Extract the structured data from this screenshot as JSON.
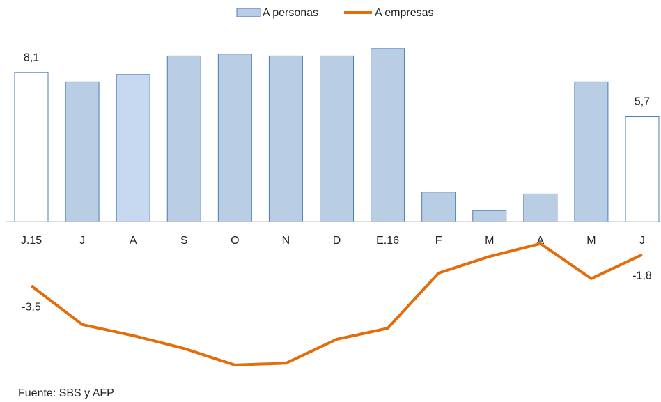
{
  "chart_data": {
    "type": "bar-line",
    "categories": [
      "J.15",
      "J",
      "A",
      "S",
      "O",
      "N",
      "D",
      "E.16",
      "F",
      "M",
      "A",
      "M",
      "J"
    ],
    "series": [
      {
        "name": "A personas",
        "type": "bar",
        "color": "#b9cde5",
        "border": "#4a7ebb",
        "point_colors": [
          "#ffffff",
          "#b9cde5",
          "#c6d9f1",
          "#b9cde5",
          "#b9cde5",
          "#b9cde5",
          "#b9cde5",
          "#b9cde5",
          "#b9cde5",
          "#b9cde5",
          "#b9cde5",
          "#b9cde5",
          "#ffffff"
        ],
        "values": [
          8.1,
          7.6,
          8.0,
          9.0,
          9.1,
          9.0,
          9.0,
          9.4,
          1.6,
          0.6,
          1.5,
          7.6,
          5.7
        ],
        "value_labels": [
          "8,1",
          null,
          null,
          null,
          null,
          null,
          null,
          null,
          null,
          null,
          null,
          null,
          "5,7"
        ]
      },
      {
        "name": "A empresas",
        "type": "line",
        "color": "#e46c0a",
        "values": [
          -3.5,
          -5.6,
          -6.2,
          -6.9,
          -7.8,
          -7.7,
          -6.4,
          -5.8,
          -2.8,
          -1.9,
          -1.2,
          -3.1,
          -1.8
        ],
        "value_labels": [
          "-3,5",
          null,
          null,
          null,
          null,
          null,
          null,
          null,
          null,
          null,
          null,
          null,
          "-1,8"
        ]
      }
    ],
    "source": "Fuente: SBS y AFP"
  }
}
